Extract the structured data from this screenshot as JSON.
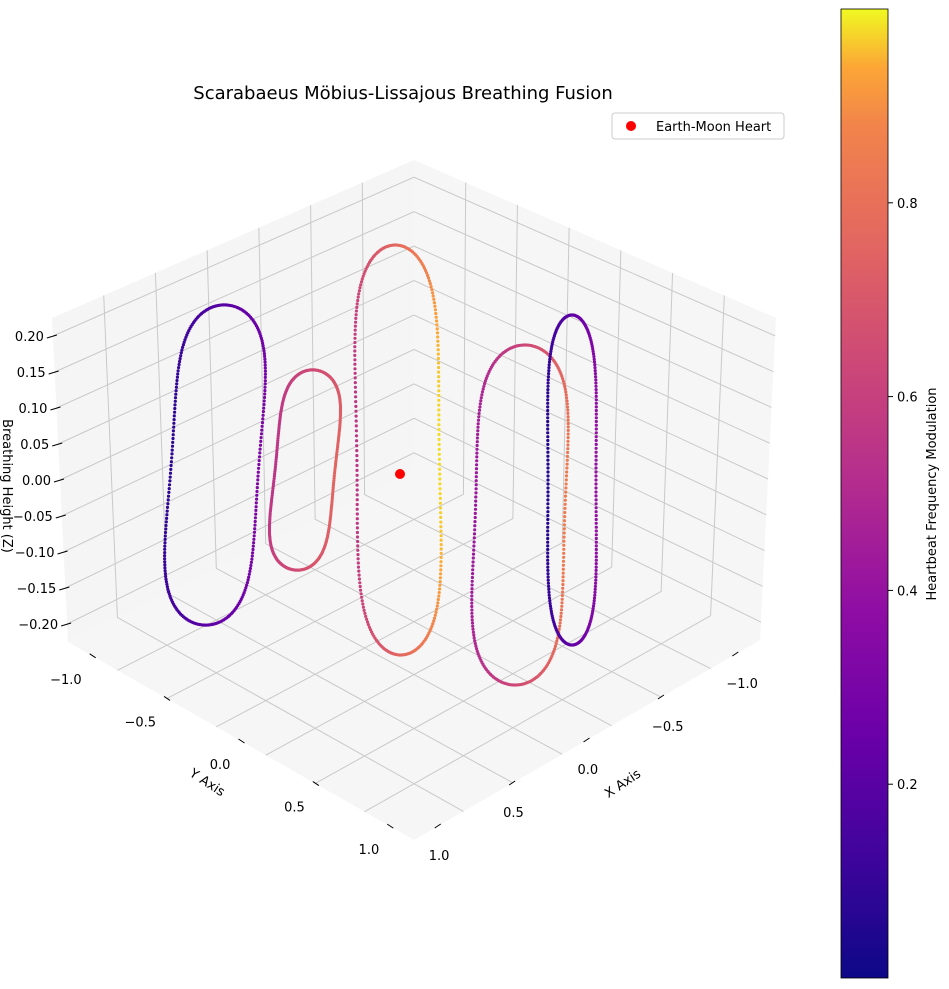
{
  "chart_data": {
    "type": "scatter",
    "projection": "3d",
    "title": "Scarabaeus Möbius-Lissajous Breathing Fusion",
    "xlabel": "X Axis",
    "ylabel": "Y Axis",
    "zlabel": "Breathing Height (Z)",
    "xlim": [
      -1.3,
      1.3
    ],
    "ylim": [
      -1.3,
      1.3
    ],
    "zlim": [
      -0.22,
      0.22
    ],
    "x_ticks": [
      "−1.0",
      "−0.5",
      "0.0",
      "0.5",
      "1.0"
    ],
    "y_ticks": [
      "−1.0",
      "−0.5",
      "0.0",
      "0.5",
      "1.0"
    ],
    "z_ticks": [
      "0.20",
      "0.15",
      "0.10",
      "0.05",
      "0.00",
      "−0.05",
      "−0.10",
      "−0.15",
      "−0.20"
    ],
    "colormap": "plasma",
    "colorbar": {
      "label": "Heartbeat Frequency Modulation",
      "range": [
        0.0,
        1.0
      ],
      "ticks": [
        "0.2",
        "0.4",
        "0.6",
        "0.8"
      ]
    },
    "series": [
      {
        "name": "Earth-Moon Heart",
        "type": "point",
        "x": 0.0,
        "y": 0.0,
        "z": 0.0,
        "color": "#ff0000"
      }
    ],
    "grid": true,
    "legend_position": "top-right"
  }
}
